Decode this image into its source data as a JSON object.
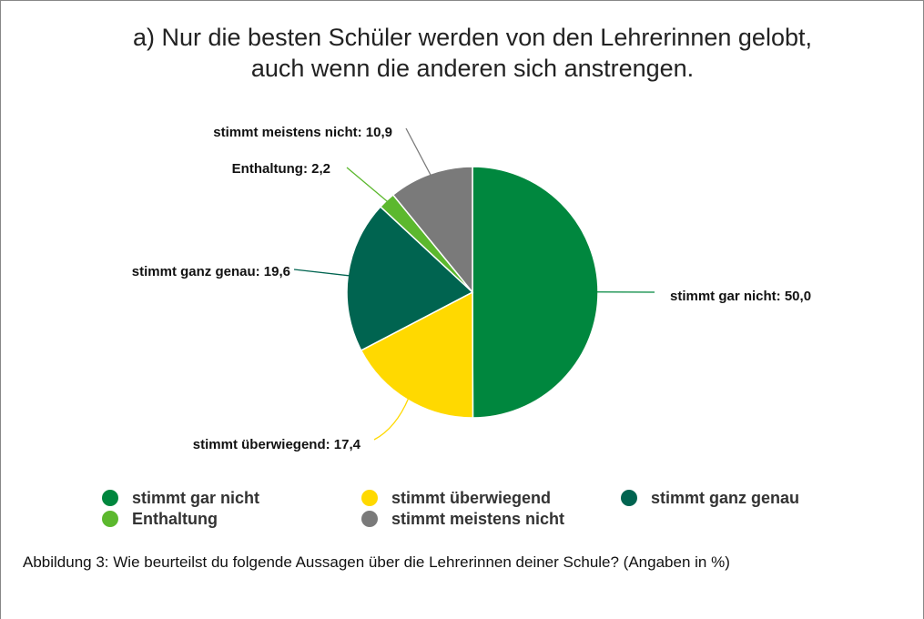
{
  "chart_data": {
    "type": "pie",
    "title": [
      "a) Nur die besten Schüler werden von den Lehrerinnen gelobt,",
      "auch wenn die anderen sich anstrengen."
    ],
    "categories": [
      "stimmt gar nicht",
      "stimmt überwiegend",
      "stimmt ganz genau",
      "Enthaltung",
      "stimmt meistens nicht"
    ],
    "values": [
      50.0,
      17.4,
      19.6,
      2.2,
      10.9
    ],
    "value_labels": [
      "stimmt gar nicht: 50,0",
      "stimmt überwiegend: 17,4",
      "stimmt ganz genau: 19,6",
      "Enthaltung: 2,2",
      "stimmt meistens nicht: 10,9"
    ],
    "colors": [
      "#00873e",
      "#ffd900",
      "#006450",
      "#5cb82e",
      "#7a7a7a"
    ],
    "legend": "bottom",
    "caption": "Abbildung 3: Wie beurteilst du folgende Aussagen über die Lehrerinnen deiner Schule? (Angaben in %)"
  }
}
